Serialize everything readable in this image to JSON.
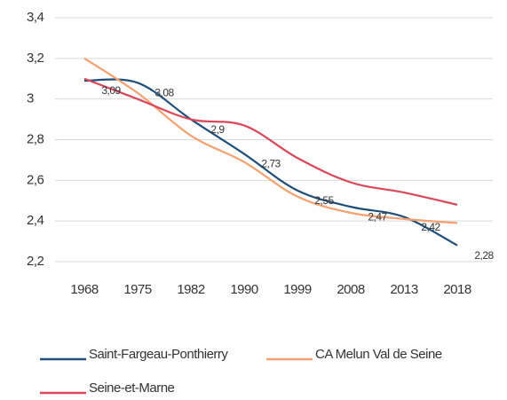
{
  "chart_data": {
    "type": "line",
    "categories": [
      "1968",
      "1975",
      "1982",
      "1990",
      "1999",
      "2008",
      "2013",
      "2018"
    ],
    "ylim": [
      2.2,
      3.4
    ],
    "yticks": [
      {
        "value": 2.2,
        "label": "2,2"
      },
      {
        "value": 2.4,
        "label": "2,4"
      },
      {
        "value": 2.6,
        "label": "2,6"
      },
      {
        "value": 2.8,
        "label": "2,8"
      },
      3,
      {
        "value": 3.2,
        "label": "3,2"
      },
      {
        "value": 3.4,
        "label": "3,4"
      }
    ],
    "grid": true,
    "series": [
      {
        "name": "Saint-Fargeau-Ponthierry",
        "color": "#1f4e79",
        "values": [
          3.09,
          3.08,
          2.9,
          2.73,
          2.55,
          2.47,
          2.42,
          2.28
        ],
        "value_labels": [
          "3,09",
          "3,08",
          "2,9",
          "2,73",
          "2,55",
          "2,47",
          "2,42",
          "2,28"
        ]
      },
      {
        "name": "CA Melun Val de Seine",
        "color": "#f4a070",
        "values": [
          3.2,
          3.03,
          2.82,
          2.69,
          2.52,
          2.44,
          2.41,
          2.39
        ]
      },
      {
        "name": "Seine-et-Marne",
        "color": "#d9475a",
        "values": [
          3.1,
          3.0,
          2.9,
          2.87,
          2.71,
          2.59,
          2.54,
          2.48
        ]
      }
    ]
  }
}
